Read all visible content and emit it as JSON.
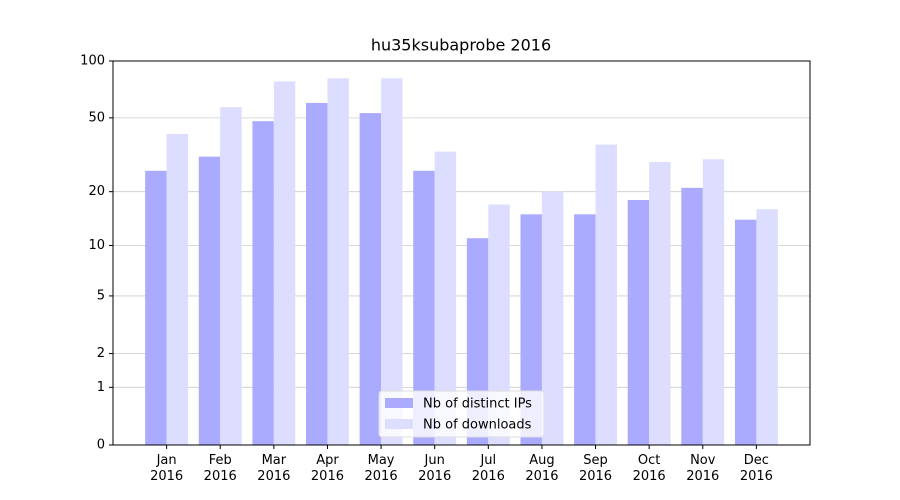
{
  "chart_data": {
    "type": "bar",
    "title": "hu35ksubaprobe 2016",
    "categories": [
      "Jan 2016",
      "Feb 2016",
      "Mar 2016",
      "Apr 2016",
      "May 2016",
      "Jun 2016",
      "Jul 2016",
      "Aug 2016",
      "Sep 2016",
      "Oct 2016",
      "Nov 2016",
      "Dec 2016"
    ],
    "series": [
      {
        "name": "Nb of distinct IPs",
        "color": "#aaaaff",
        "values": [
          26,
          31,
          48,
          60,
          53,
          26,
          11,
          15,
          15,
          18,
          21,
          14
        ]
      },
      {
        "name": "Nb of downloads",
        "color": "#ddddff",
        "values": [
          41,
          57,
          78,
          81,
          81,
          33,
          17,
          20,
          36,
          29,
          30,
          16
        ]
      }
    ],
    "yscale": "log1p",
    "ylim": [
      0,
      100
    ],
    "yticks": [
      0,
      1,
      2,
      5,
      10,
      20,
      50,
      100
    ],
    "grid": true,
    "legend": "lower center"
  }
}
